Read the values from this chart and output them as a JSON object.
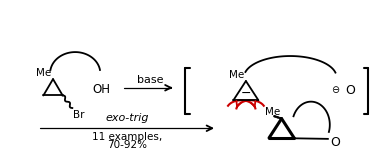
{
  "bg_color": "#ffffff",
  "text_color": "#000000",
  "red_color": "#cc0000",
  "fig_width": 3.78,
  "fig_height": 1.51,
  "dpi": 100,
  "base_label": "base",
  "exo_trig_label": "exo-trig",
  "examples_label": "11 examples,",
  "yield_label": "70-92%",
  "me_label": "Me",
  "br_label": "Br",
  "oh_label": "OH",
  "o_label": "O",
  "minus_label": "−",
  "ominus": "⊖",
  "ominus_o": "O"
}
